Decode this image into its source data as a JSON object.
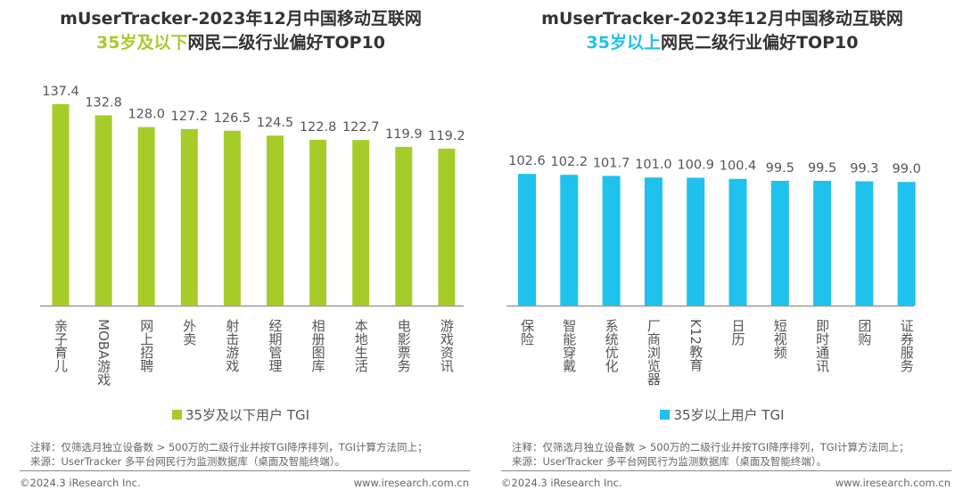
{
  "panels": [
    {
      "title": "mUserTracker-2023年12月中国移动互联网",
      "subtitle_highlight": "35岁及以下",
      "subtitle_rest": "网民二级行业偏好TOP10",
      "color": "#a6cc2a"
    },
    {
      "title": "mUserTracker-2023年12月中国移动互联网",
      "subtitle_highlight": "35岁以上",
      "subtitle_rest": "网民二级行业偏好TOP10",
      "color": "#1ec2ec"
    }
  ],
  "chart_data": [
    {
      "type": "bar",
      "categories": [
        "亲子育儿",
        "MOBA游戏",
        "网上招聘",
        "外卖",
        "射击游戏",
        "经期管理",
        "相册图库",
        "本地生活",
        "电影票务",
        "游戏资讯"
      ],
      "series": [
        {
          "name": "35岁及以下用户 TGI",
          "values": [
            137.4,
            132.8,
            128.0,
            127.2,
            126.5,
            124.5,
            122.8,
            122.7,
            119.9,
            119.2
          ]
        }
      ],
      "legend": "bottom",
      "grid": false,
      "ylim": [
        55,
        149
      ]
    },
    {
      "type": "bar",
      "categories": [
        "保险",
        "智能穿戴",
        "系统优化",
        "厂商浏览器",
        "K12教育",
        "日历",
        "短视频",
        "即时通讯",
        "团购",
        "证券服务"
      ],
      "series": [
        {
          "name": "35岁以上用户 TGI",
          "values": [
            102.6,
            102.2,
            101.7,
            101.0,
            100.9,
            100.4,
            99.5,
            99.5,
            99.3,
            99.0
          ]
        }
      ],
      "legend": "bottom",
      "grid": false,
      "ylim": [
        43.6,
        146.6
      ]
    }
  ],
  "notes": {
    "line1": "注释：仅筛选月独立设备数 > 500万的二级行业并按TGI降序排列，TGI计算方法同上；",
    "line2": "来源：UserTracker 多平台网民行为监测数据库（桌面及智能终端）。"
  },
  "footer": {
    "copyright": "©2024.3 iResearch Inc.",
    "url": "www.iresearch.com.cn"
  }
}
